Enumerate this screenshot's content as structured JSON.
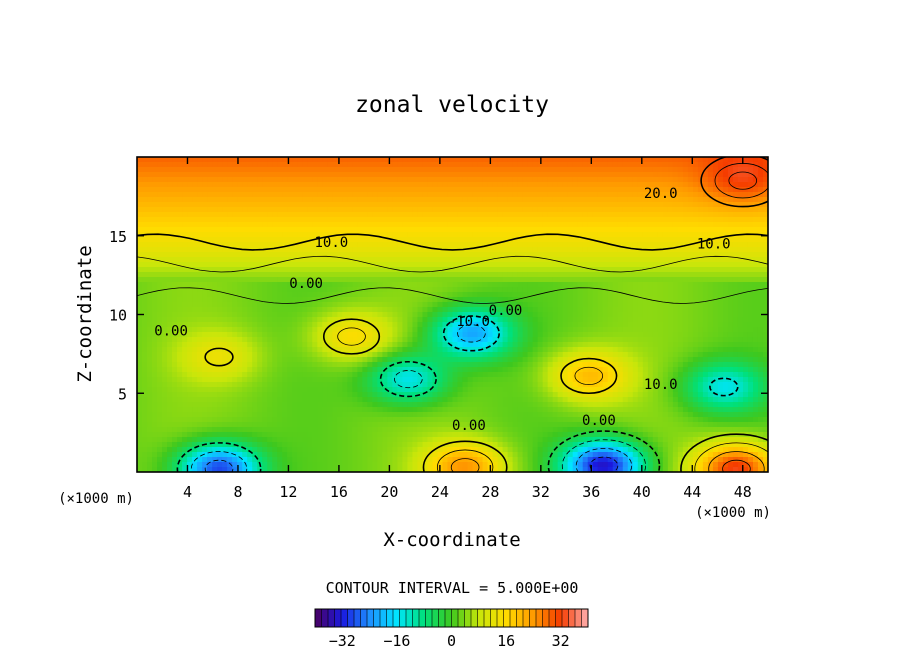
{
  "chart_data": {
    "type": "heatmap",
    "subtype": "filled contour plot",
    "title": "zonal velocity",
    "xlabel": "X-coordinate",
    "ylabel": "Z-coordinate",
    "x_unit_note": "(×1000 m)",
    "y_unit_note": "(×1000 m)",
    "xlim": [
      0,
      50
    ],
    "ylim": [
      0,
      20
    ],
    "x_ticks": [
      4,
      8,
      12,
      16,
      20,
      24,
      28,
      32,
      36,
      40,
      44,
      48
    ],
    "y_ticks": [
      5,
      10,
      15
    ],
    "contour_interval_text": "CONTOUR INTERVAL = 5.000E+00",
    "colorbar": {
      "range": [
        -40,
        40
      ],
      "ticks": [
        -32,
        -16,
        0,
        16,
        32
      ],
      "colormap": [
        "#4b0060",
        "#1a1ae0",
        "#1e90ff",
        "#00e5ff",
        "#00e07a",
        "#3ec81e",
        "#c8e60a",
        "#ffdc00",
        "#ff9a00",
        "#f53c00",
        "#ffb0b0"
      ]
    },
    "contour_labels": [
      {
        "text": "20.0",
        "x": 41.5,
        "y": 17.7
      },
      {
        "text": "10.0",
        "x": 15.4,
        "y": 14.6
      },
      {
        "text": "10.0",
        "x": 45.7,
        "y": 14.5
      },
      {
        "text": "0.00",
        "x": 13.4,
        "y": 12.0
      },
      {
        "text": "0.00",
        "x": 2.7,
        "y": 9.0
      },
      {
        "text": "-10.0",
        "x": 26.3,
        "y": 9.6
      },
      {
        "text": "0.00",
        "x": 29.2,
        "y": 10.3
      },
      {
        "text": "0.00",
        "x": 26.3,
        "y": 3.0
      },
      {
        "text": "0.00",
        "x": 36.6,
        "y": 3.3
      },
      {
        "text": "10.0",
        "x": 41.5,
        "y": 5.6
      }
    ],
    "extrema": [
      {
        "x": 17,
        "y": 8.6,
        "value": 16,
        "type": "max"
      },
      {
        "x": 6.5,
        "y": 7.3,
        "value": 12,
        "type": "max"
      },
      {
        "x": 35.8,
        "y": 6.1,
        "value": 20,
        "type": "max"
      },
      {
        "x": 26.5,
        "y": 8.8,
        "value": -22,
        "type": "min"
      },
      {
        "x": 21.5,
        "y": 5.9,
        "value": -16,
        "type": "min"
      },
      {
        "x": 46.5,
        "y": 5.4,
        "value": -14,
        "type": "min"
      },
      {
        "x": 37,
        "y": 0.4,
        "value": -34,
        "type": "min"
      },
      {
        "x": 6.5,
        "y": 0.2,
        "value": -30,
        "type": "min"
      },
      {
        "x": 26,
        "y": 0.3,
        "value": 24,
        "type": "max"
      },
      {
        "x": 47.5,
        "y": 0.2,
        "value": 34,
        "type": "max"
      },
      {
        "x": 48,
        "y": 18.5,
        "value": 28,
        "type": "max"
      }
    ]
  }
}
